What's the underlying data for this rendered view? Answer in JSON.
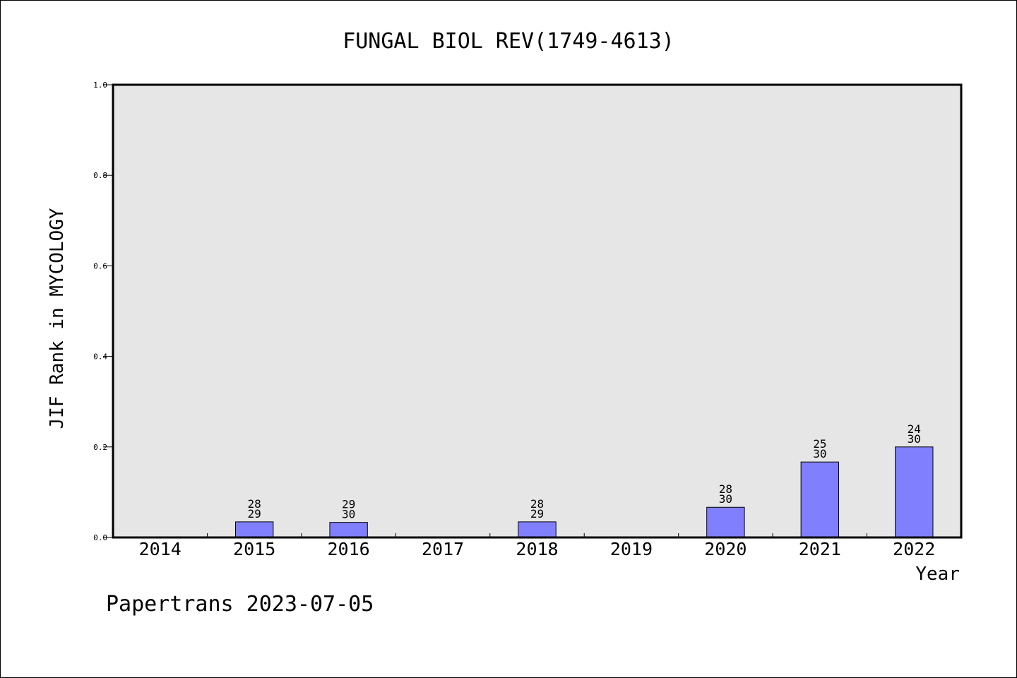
{
  "chart_data": {
    "type": "bar",
    "title": "FUNGAL BIOL REV(1749-4613)",
    "xlabel": "Year",
    "ylabel": "JIF Rank in MYCOLOGY",
    "ylim": [
      0,
      1.0
    ],
    "yticks": [
      "0.0",
      "0.2",
      "0.4",
      "0.6",
      "0.8",
      "1.0"
    ],
    "categories": [
      "2014",
      "2015",
      "2016",
      "2017",
      "2018",
      "2019",
      "2020",
      "2021",
      "2022"
    ],
    "values": [
      null,
      0.0345,
      0.0333,
      null,
      0.0345,
      null,
      0.0667,
      0.1667,
      0.2
    ],
    "bar_labels": [
      null,
      {
        "rank": "28",
        "total": "29"
      },
      {
        "rank": "29",
        "total": "30"
      },
      null,
      {
        "rank": "28",
        "total": "29"
      },
      null,
      {
        "rank": "28",
        "total": "30"
      },
      {
        "rank": "25",
        "total": "30"
      },
      {
        "rank": "24",
        "total": "30"
      }
    ],
    "grid": false,
    "colors": {
      "bar": "#8080ff",
      "plot_bg": "#e6e6e6"
    }
  },
  "footer": {
    "text": "Papertrans 2023-07-05"
  }
}
